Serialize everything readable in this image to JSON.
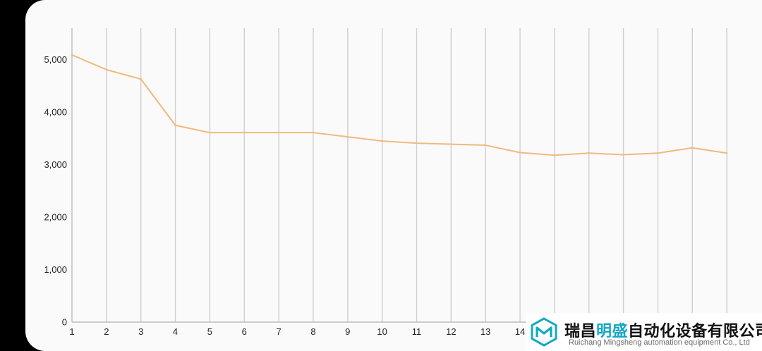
{
  "chart_data": {
    "type": "line",
    "x": [
      "1",
      "2",
      "3",
      "4",
      "5",
      "6",
      "7",
      "8",
      "9",
      "10",
      "11",
      "12",
      "13",
      "14",
      "15",
      "16",
      "17",
      "18",
      "19",
      "20"
    ],
    "series": [
      {
        "values": [
          5090,
          4810,
          4630,
          3750,
          3610,
          3610,
          3610,
          3610,
          3530,
          3450,
          3410,
          3390,
          3370,
          3230,
          3180,
          3220,
          3190,
          3220,
          3320,
          3220
        ]
      }
    ],
    "ylim": [
      0,
      5600
    ],
    "yticks": [
      0,
      1000,
      2000,
      3000,
      4000,
      5000
    ],
    "ytick_labels": [
      "0",
      "1,000",
      "2,000",
      "3,000",
      "4,000",
      "5,000"
    ],
    "xtick_labels_visible": [
      "1",
      "2",
      "3",
      "4",
      "5",
      "6",
      "7",
      "8",
      "9",
      "10",
      "11",
      "12",
      "13",
      "14"
    ],
    "grid": {
      "vertical": true,
      "horizontal": false
    },
    "line_color": "#f2b97c"
  },
  "watermark": {
    "company_cn_prefix": "瑞昌",
    "company_cn_highlight": "明盛",
    "company_cn_suffix": "自动化设备有限公司",
    "company_en": "Ruichang Mingsheng automation equipment Co., Ltd",
    "accent_color": "#11a8c4"
  }
}
